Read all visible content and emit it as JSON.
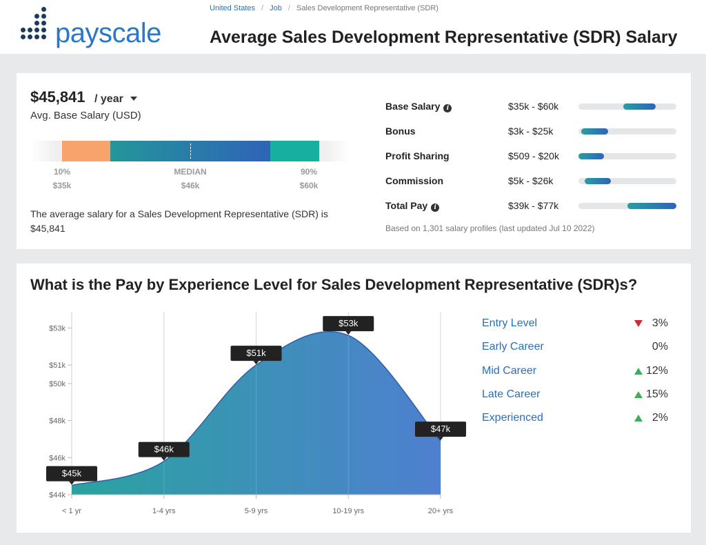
{
  "brand": {
    "logo_text": "payscale",
    "logo_color": "#2a77c9",
    "dot_color": "#1c3a5a"
  },
  "breadcrumb": [
    "United States",
    "Job",
    "Sales Development Representative (SDR)"
  ],
  "page_title": "Average Sales Development Representative (SDR) Salary",
  "salary_summary": {
    "value": "$45,841",
    "period": "/ year",
    "label": "Avg. Base Salary (USD)",
    "percentiles": [
      {
        "label": "10%",
        "value": "$35k"
      },
      {
        "label": "MEDIAN",
        "value": "$46k"
      },
      {
        "label": "90%",
        "value": "$60k"
      }
    ],
    "description": "The average salary for a Sales Development Representative (SDR) is $45,841"
  },
  "compensation": {
    "rows": [
      {
        "label": "Base Salary",
        "info": true,
        "range": "$35k - $60k",
        "fill_start": 0.46,
        "fill_end": 0.79
      },
      {
        "label": "Bonus",
        "info": false,
        "range": "$3k - $25k",
        "fill_start": 0.03,
        "fill_end": 0.3
      },
      {
        "label": "Profit Sharing",
        "info": false,
        "range": "$509 - $20k",
        "fill_start": 0.0,
        "fill_end": 0.26
      },
      {
        "label": "Commission",
        "info": false,
        "range": "$5k - $26k",
        "fill_start": 0.06,
        "fill_end": 0.33
      },
      {
        "label": "Total Pay",
        "info": true,
        "range": "$39k - $77k",
        "fill_start": 0.5,
        "fill_end": 1.0
      }
    ],
    "note": "Based on 1,301 salary profiles (last updated Jul 10 2022)"
  },
  "experience_section": {
    "title": "What is the Pay by Experience Level for Sales Development Representative (SDR)s?",
    "levels": [
      {
        "label": "Entry Level",
        "direction": "down",
        "pct": "3%"
      },
      {
        "label": "Early Career",
        "direction": "none",
        "pct": "0%"
      },
      {
        "label": "Mid Career",
        "direction": "up",
        "pct": "12%"
      },
      {
        "label": "Late Career",
        "direction": "up",
        "pct": "15%"
      },
      {
        "label": "Experienced",
        "direction": "up",
        "pct": "2%"
      }
    ]
  },
  "chart_data": {
    "type": "area",
    "categories": [
      "< 1 yr",
      "1-4 yrs",
      "5-9 yrs",
      "10-19 yrs",
      "20+ yrs"
    ],
    "values": [
      44.5,
      45.8,
      51,
      52.6,
      46.9
    ],
    "data_labels": [
      "$45k",
      "$46k",
      "$51k",
      "$53k",
      "$47k"
    ],
    "y_ticks": [
      44,
      46,
      48,
      50,
      51,
      53
    ],
    "y_tick_labels": [
      "$44k",
      "$46k",
      "$48k",
      "$50k",
      "$51k",
      "$53k"
    ],
    "ylim": [
      44,
      53.5
    ],
    "gradient": [
      "#2aa39f",
      "#4f7fd0"
    ],
    "label_bg": "#222222"
  }
}
